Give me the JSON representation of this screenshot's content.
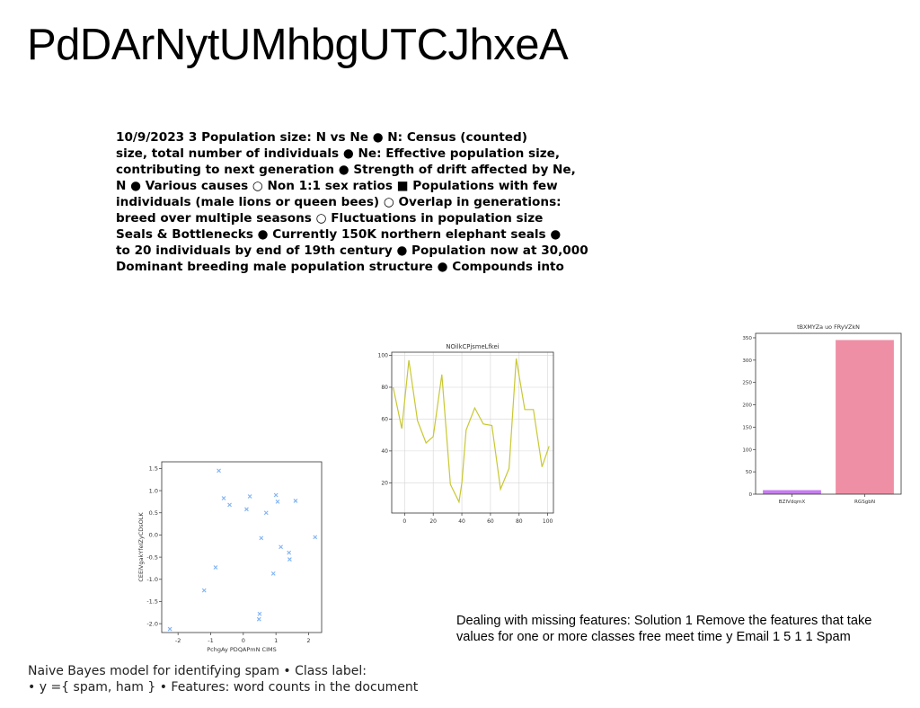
{
  "title": "PdDArNytUMhbgUTCJhxeA",
  "notes_lines": [
    "10/9/2023 3 Population size: N vs Ne ● N: Census (counted)",
    "size, total number of individuals ● Ne: Effective population size,",
    "contributing to next generation ● Strength of drift affected by Ne,",
    "N ● Various causes ○ Non 1:1 sex ratios ■ Populations with few",
    "individuals (male lions or queen bees) ○ Overlap in generations:",
    "breed over multiple seasons ○ Fluctuations in population size",
    "Seals & Bottlenecks ● Currently 150K northern elephant seals ●",
    "to 20 individuals by end of 19th century ● Population now at 30,000",
    "Dominant breeding male population structure ● Compounds into"
  ],
  "missing_features_lines": [
    "Dealing with missing features: Solution 1 Remove the features that take",
    "values for one or more classes free meet time y Email 1 5 1 1 Spam"
  ],
  "naive_bayes_lines": [
    "Naive Bayes model for identifying spam • Class label:",
    "• y ={ spam, ham } • Features: word counts in the document"
  ],
  "chart_data": [
    {
      "type": "scatter",
      "title": "",
      "xlabel": "PchgAy PDQAPmN CIMS",
      "ylabel": "CEEiVgakYfeIZyCDsOLK",
      "xlim": [
        -2.5,
        2.4
      ],
      "ylim": [
        -2.2,
        1.65
      ],
      "xticks": [
        -2,
        -1,
        0,
        1,
        2
      ],
      "yticks": [
        -2.0,
        -1.5,
        -1.0,
        -0.5,
        0.0,
        0.5,
        1.0,
        1.5
      ],
      "ytick_labels": [
        "-2.0",
        "-1.5",
        "-1.0",
        "-0.5",
        "0.0",
        "0.5",
        "1.0",
        "1.5"
      ],
      "marker": "x",
      "color": "#7fb3f5",
      "grid": false,
      "points": [
        [
          -2.25,
          -2.12
        ],
        [
          -1.2,
          -1.25
        ],
        [
          -0.85,
          -0.73
        ],
        [
          -0.75,
          1.45
        ],
        [
          -0.6,
          0.83
        ],
        [
          -0.42,
          0.68
        ],
        [
          0.1,
          0.58
        ],
        [
          0.2,
          0.87
        ],
        [
          0.55,
          -0.07
        ],
        [
          0.5,
          -1.78
        ],
        [
          0.48,
          -1.9
        ],
        [
          0.7,
          0.5
        ],
        [
          0.92,
          -0.87
        ],
        [
          1.0,
          0.9
        ],
        [
          1.05,
          0.75
        ],
        [
          1.15,
          -0.27
        ],
        [
          1.4,
          -0.4
        ],
        [
          1.42,
          -0.55
        ],
        [
          1.6,
          0.77
        ],
        [
          2.2,
          -0.05
        ]
      ]
    },
    {
      "type": "line",
      "title": "NOilkCPjsmeLfkei",
      "xlabel": "",
      "ylabel": "",
      "xlim": [
        -9,
        104
      ],
      "ylim": [
        1,
        102
      ],
      "xticks": [
        0,
        20,
        40,
        60,
        80,
        100
      ],
      "yticks": [
        20,
        40,
        60,
        80,
        100
      ],
      "color": "#c8c833",
      "grid": true,
      "x": [
        -8,
        -2,
        3,
        9,
        15,
        20,
        26,
        32,
        38,
        40,
        43,
        49,
        55,
        61,
        67,
        73,
        78,
        84,
        90,
        96,
        101
      ],
      "y": [
        80,
        54,
        97,
        59,
        45,
        49,
        88,
        19,
        8,
        20,
        53,
        67,
        57,
        56,
        16,
        29,
        98,
        66,
        66,
        30,
        43
      ]
    },
    {
      "type": "bar",
      "title": "tBXMYZa uo FRyVZkN",
      "xlabel": "",
      "ylabel": "",
      "categories": [
        "BZlVdqmX",
        "RGSgbN"
      ],
      "values": [
        9,
        345
      ],
      "colors": [
        "#c77cf0",
        "#ef8fa6"
      ],
      "ylim": [
        0,
        360
      ],
      "yticks": [
        0,
        50,
        100,
        150,
        200,
        250,
        300,
        350
      ],
      "grid": false
    }
  ]
}
